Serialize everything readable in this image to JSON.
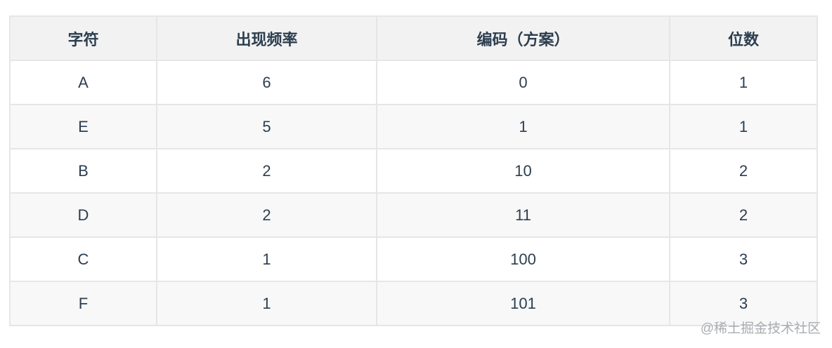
{
  "table": {
    "headers": [
      "字符",
      "出现频率",
      "编码（方案）",
      "位数"
    ],
    "rows": [
      [
        "A",
        "6",
        "0",
        "1"
      ],
      [
        "E",
        "5",
        "1",
        "1"
      ],
      [
        "B",
        "2",
        "10",
        "2"
      ],
      [
        "D",
        "2",
        "11",
        "2"
      ],
      [
        "C",
        "1",
        "100",
        "3"
      ],
      [
        "F",
        "1",
        "101",
        "3"
      ]
    ]
  },
  "watermark": "@稀土掘金技术社区"
}
